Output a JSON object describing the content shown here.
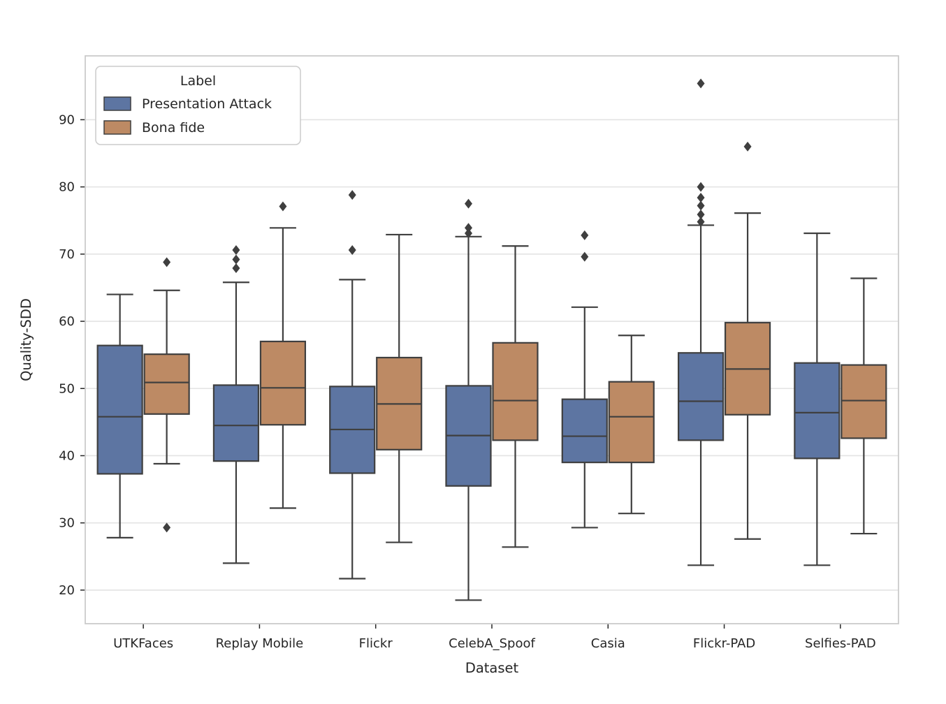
{
  "figure": {
    "background": "#ffffff"
  },
  "chart_data": {
    "type": "boxplot",
    "title": "",
    "xlabel": "Dataset",
    "ylabel": "Quality-SDD",
    "ylim": [
      15,
      99.5
    ],
    "yticks": [
      20,
      30,
      40,
      50,
      60,
      70,
      80,
      90
    ],
    "grid": "horizontal",
    "legend": {
      "title": "Label",
      "position": "upper-left",
      "entries": [
        {
          "label": "Presentation Attack",
          "color": "#5d75a2"
        },
        {
          "label": "Bona fide",
          "color": "#bd8a64"
        }
      ]
    },
    "categories": [
      "UTKFaces",
      "Replay Mobile",
      "Flickr",
      "CelebA_Spoof",
      "Casia",
      "Flickr-PAD",
      "Selfies-PAD"
    ],
    "series": [
      {
        "name": "Presentation Attack",
        "color": "#5d75a2",
        "boxes": [
          {
            "whislo": 27.8,
            "q1": 37.3,
            "med": 45.8,
            "q3": 56.4,
            "whishi": 64.0,
            "fliers": []
          },
          {
            "whislo": 24.0,
            "q1": 39.2,
            "med": 44.5,
            "q3": 50.5,
            "whishi": 65.8,
            "fliers": [
              70.6,
              69.2,
              67.9
            ]
          },
          {
            "whislo": 21.7,
            "q1": 37.4,
            "med": 43.9,
            "q3": 50.3,
            "whishi": 66.2,
            "fliers": [
              78.8,
              70.6
            ]
          },
          {
            "whislo": 18.5,
            "q1": 35.5,
            "med": 43.0,
            "q3": 50.4,
            "whishi": 72.6,
            "fliers": [
              77.5,
              73.9,
              73.1
            ]
          },
          {
            "whislo": 29.3,
            "q1": 39.0,
            "med": 42.9,
            "q3": 48.4,
            "whishi": 62.1,
            "fliers": [
              72.8,
              69.6
            ]
          },
          {
            "whislo": 23.7,
            "q1": 42.3,
            "med": 48.1,
            "q3": 55.3,
            "whishi": 74.3,
            "fliers": [
              95.4,
              80.0,
              78.4,
              77.2,
              75.9,
              74.8
            ]
          },
          {
            "whislo": 23.7,
            "q1": 39.6,
            "med": 46.4,
            "q3": 53.8,
            "whishi": 73.1,
            "fliers": []
          }
        ]
      },
      {
        "name": "Bona fide",
        "color": "#bd8a64",
        "boxes": [
          {
            "whislo": 38.8,
            "q1": 46.2,
            "med": 50.9,
            "q3": 55.1,
            "whishi": 64.6,
            "fliers": [
              68.8,
              29.3
            ]
          },
          {
            "whislo": 32.2,
            "q1": 44.6,
            "med": 50.1,
            "q3": 57.0,
            "whishi": 73.9,
            "fliers": [
              77.1
            ]
          },
          {
            "whislo": 27.1,
            "q1": 40.9,
            "med": 47.7,
            "q3": 54.6,
            "whishi": 72.9,
            "fliers": []
          },
          {
            "whislo": 26.4,
            "q1": 42.3,
            "med": 48.2,
            "q3": 56.8,
            "whishi": 71.2,
            "fliers": []
          },
          {
            "whislo": 31.4,
            "q1": 39.0,
            "med": 45.8,
            "q3": 51.0,
            "whishi": 57.9,
            "fliers": []
          },
          {
            "whislo": 27.6,
            "q1": 46.1,
            "med": 52.9,
            "q3": 59.8,
            "whishi": 76.1,
            "fliers": [
              86.0
            ]
          },
          {
            "whislo": 28.4,
            "q1": 42.6,
            "med": 48.2,
            "q3": 53.5,
            "whishi": 66.4,
            "fliers": []
          }
        ]
      }
    ],
    "style": {
      "box_edge_color": "#3f3f3f",
      "median_color": "#3f3f3f",
      "flier_color": "#3f3f3f",
      "grid_color": "#e3e3e3",
      "spine_color": "#cbcbcb",
      "text_color": "#262626"
    }
  }
}
